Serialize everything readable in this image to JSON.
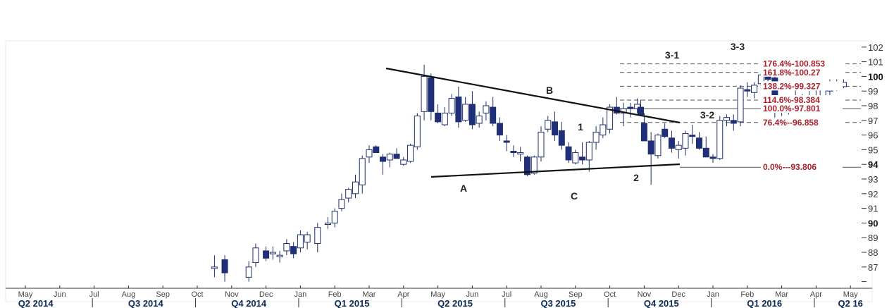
{
  "chart_data": {
    "type": "candlestick",
    "y_axis": {
      "position": "right",
      "ticks": [
        "87",
        "88",
        "89",
        "90",
        "91",
        "92",
        "93",
        "94",
        "95",
        "96",
        "97",
        "98",
        "99",
        "100",
        "101",
        "102"
      ],
      "bold_ticks": [
        "90",
        "94",
        "100"
      ],
      "ylim": [
        86,
        102.5
      ]
    },
    "x_axis": {
      "months": [
        "May",
        "Jun",
        "Jul",
        "Aug",
        "Sep",
        "Oct",
        "Nov",
        "Dec",
        "Jan",
        "Feb",
        "Mar",
        "Apr",
        "May",
        "Jun",
        "Jul",
        "Aug",
        "Sep",
        "Oct",
        "Nov",
        "Dec",
        "Jan",
        "Feb",
        "Mar",
        "Apr",
        "May"
      ],
      "quarters": [
        "Q2 2014",
        "Q3 2014",
        "Q4 2014",
        "Q1 2015",
        "Q2 2015",
        "Q3 2015",
        "Q4 2015",
        "Q1 2016",
        "Q2 16"
      ]
    },
    "candles": [
      [
        5.5,
        86.9,
        87.8,
        86.3,
        87.0
      ],
      [
        5.8,
        87.5,
        87.8,
        86.0,
        86.6
      ],
      [
        6.5,
        86.3,
        87.4,
        86.0,
        87.0
      ],
      [
        6.7,
        87.3,
        88.6,
        87.0,
        88.3
      ],
      [
        7.0,
        88.1,
        88.4,
        87.4,
        87.6
      ],
      [
        7.2,
        87.9,
        88.4,
        87.5,
        88.0
      ],
      [
        7.4,
        87.7,
        88.1,
        87.3,
        87.8
      ],
      [
        7.6,
        88.1,
        88.9,
        87.8,
        88.6
      ],
      [
        7.8,
        88.4,
        88.7,
        87.6,
        87.9
      ],
      [
        8.0,
        88.3,
        89.5,
        88.0,
        89.2
      ],
      [
        8.2,
        88.7,
        89.4,
        88.2,
        89.2
      ],
      [
        8.5,
        88.6,
        90.0,
        88.0,
        89.7
      ],
      [
        8.8,
        89.9,
        90.4,
        89.6,
        90.0
      ],
      [
        9.0,
        90.0,
        91.0,
        89.7,
        90.8
      ],
      [
        9.2,
        91.0,
        92.0,
        90.8,
        91.6
      ],
      [
        9.4,
        91.7,
        92.4,
        91.4,
        92.3
      ],
      [
        9.6,
        92.0,
        93.3,
        91.7,
        92.8
      ],
      [
        9.8,
        92.6,
        94.6,
        92.0,
        94.4
      ],
      [
        10.0,
        94.5,
        95.3,
        94.1,
        95.0
      ],
      [
        10.2,
        95.2,
        95.3,
        94.8,
        94.8
      ],
      [
        10.4,
        94.5,
        94.7,
        93.3,
        94.2
      ],
      [
        10.6,
        94.3,
        94.8,
        93.8,
        94.7
      ],
      [
        10.8,
        94.7,
        95.1,
        94.4,
        94.4
      ],
      [
        11.0,
        94.0,
        94.5,
        93.9,
        94.3
      ],
      [
        11.2,
        94.2,
        95.4,
        94.1,
        95.3
      ],
      [
        11.4,
        95.2,
        97.5,
        95.0,
        97.3
      ],
      [
        11.6,
        97.6,
        100.8,
        97.0,
        100.0
      ],
      [
        11.8,
        99.9,
        100.2,
        97.0,
        97.6
      ],
      [
        12.0,
        97.5,
        98.1,
        96.8,
        96.9
      ],
      [
        12.2,
        96.7,
        97.9,
        96.6,
        97.5
      ],
      [
        12.4,
        97.5,
        98.8,
        97.3,
        98.5
      ],
      [
        12.6,
        98.6,
        99.3,
        96.5,
        96.9
      ],
      [
        12.8,
        97.0,
        98.6,
        96.9,
        98.1
      ],
      [
        13.0,
        98.1,
        99.0,
        96.4,
        96.7
      ],
      [
        13.2,
        96.8,
        97.6,
        96.5,
        97.3
      ],
      [
        13.4,
        97.5,
        98.3,
        97.0,
        98.0
      ],
      [
        13.6,
        97.9,
        98.6,
        96.6,
        96.8
      ],
      [
        13.8,
        96.8,
        97.2,
        95.6,
        96.0
      ],
      [
        14.0,
        95.6,
        96.0,
        94.9,
        95.5
      ],
      [
        14.2,
        94.9,
        95.3,
        94.5,
        94.8
      ],
      [
        14.4,
        94.7,
        95.2,
        94.2,
        94.8
      ],
      [
        14.6,
        94.5,
        94.6,
        93.2,
        93.3
      ],
      [
        14.8,
        93.4,
        94.6,
        93.3,
        94.5
      ],
      [
        15.0,
        94.5,
        96.6,
        94.2,
        96.2
      ],
      [
        15.2,
        96.4,
        97.3,
        96.2,
        97.0
      ],
      [
        15.4,
        96.9,
        97.6,
        95.6,
        96.0
      ],
      [
        15.6,
        96.3,
        96.9,
        95.0,
        95.3
      ],
      [
        15.8,
        95.2,
        95.5,
        94.1,
        94.3
      ],
      [
        16.0,
        94.1,
        95.0,
        94.0,
        94.8
      ],
      [
        16.2,
        94.5,
        95.5,
        94.0,
        94.3
      ],
      [
        16.4,
        94.3,
        95.6,
        93.5,
        95.5
      ],
      [
        16.6,
        95.5,
        96.6,
        95.0,
        96.2
      ],
      [
        16.8,
        96.0,
        97.2,
        95.8,
        96.7
      ],
      [
        17.0,
        96.4,
        98.1,
        96.1,
        97.9
      ],
      [
        17.2,
        97.9,
        98.6,
        97.4,
        97.5
      ],
      [
        17.4,
        97.5,
        98.2,
        96.6,
        97.8
      ],
      [
        17.6,
        97.9,
        98.2,
        97.2,
        97.8
      ],
      [
        17.8,
        97.8,
        98.5,
        97.5,
        98.1
      ],
      [
        17.9,
        97.9,
        98.4,
        97.5,
        97.4
      ],
      [
        18.0,
        96.8,
        97.5,
        95.6,
        95.6
      ],
      [
        18.2,
        95.6,
        96.2,
        92.6,
        94.7
      ],
      [
        18.4,
        94.6,
        96.1,
        94.4,
        96.0
      ],
      [
        18.6,
        96.4,
        96.8,
        95.8,
        95.9
      ],
      [
        18.8,
        95.8,
        96.3,
        94.8,
        95.1
      ],
      [
        19.0,
        95.0,
        95.6,
        94.4,
        95.3
      ],
      [
        19.2,
        95.1,
        96.3,
        94.6,
        96.1
      ],
      [
        19.4,
        96.0,
        96.7,
        95.4,
        95.9
      ],
      [
        19.6,
        95.8,
        96.2,
        95.0,
        95.1
      ],
      [
        19.8,
        95.1,
        95.9,
        94.6,
        94.5
      ],
      [
        20.0,
        94.5,
        94.7,
        94.1,
        94.4
      ],
      [
        20.2,
        94.4,
        97.3,
        94.3,
        97.0
      ],
      [
        20.4,
        97.0,
        97.4,
        96.6,
        97.2
      ],
      [
        20.6,
        97.0,
        97.4,
        96.3,
        96.8
      ],
      [
        20.8,
        96.9,
        99.4,
        96.6,
        99.2
      ],
      [
        21.0,
        99.1,
        99.6,
        98.6,
        99.0
      ],
      [
        21.2,
        98.9,
        99.6,
        98.5,
        99.4
      ],
      [
        21.4,
        99.5,
        100.2,
        99.2,
        100.1
      ],
      [
        21.6,
        100.0,
        100.5,
        99.6,
        99.8
      ],
      [
        21.8,
        99.9,
        100.1,
        96.9,
        97.8
      ],
      [
        22.0,
        97.6,
        98.2,
        97.3,
        98.0
      ],
      [
        22.2,
        97.8,
        98.6,
        97.4,
        98.4
      ],
      [
        22.4,
        98.2,
        99.4,
        97.9,
        98.6
      ],
      [
        22.6,
        98.5,
        98.8,
        97.6,
        98.0
      ],
      [
        22.8,
        97.9,
        99.0,
        97.8,
        98.6
      ],
      [
        23.0,
        98.6,
        99.4,
        98.3,
        98.5
      ],
      [
        23.2,
        98.5,
        99.2,
        98.3,
        99.1
      ],
      [
        23.4,
        99.0,
        99.8,
        98.7,
        99.6
      ],
      [
        23.6,
        99.5,
        99.8,
        99.0,
        99.2
      ],
      [
        23.8,
        99.3,
        99.8,
        99.2,
        99.6
      ]
    ],
    "fib_levels": [
      {
        "label": "176.4%-100.853",
        "value": 100.853
      },
      {
        "label": "161.8%-100.27",
        "value": 100.27
      },
      {
        "label": "138.2%-99.327",
        "value": 99.327
      },
      {
        "label": "114.6%-98.384",
        "value": 98.384
      },
      {
        "label": "100.0%-97.801",
        "value": 97.801
      },
      {
        "label": "76.4%--96.858",
        "value": 96.858
      },
      {
        "label": "0.0%---93.806",
        "value": 93.806
      }
    ],
    "wave_labels": [
      "A",
      "B",
      "C",
      "1",
      "2",
      "3-1",
      "3-2",
      "3-3"
    ]
  }
}
